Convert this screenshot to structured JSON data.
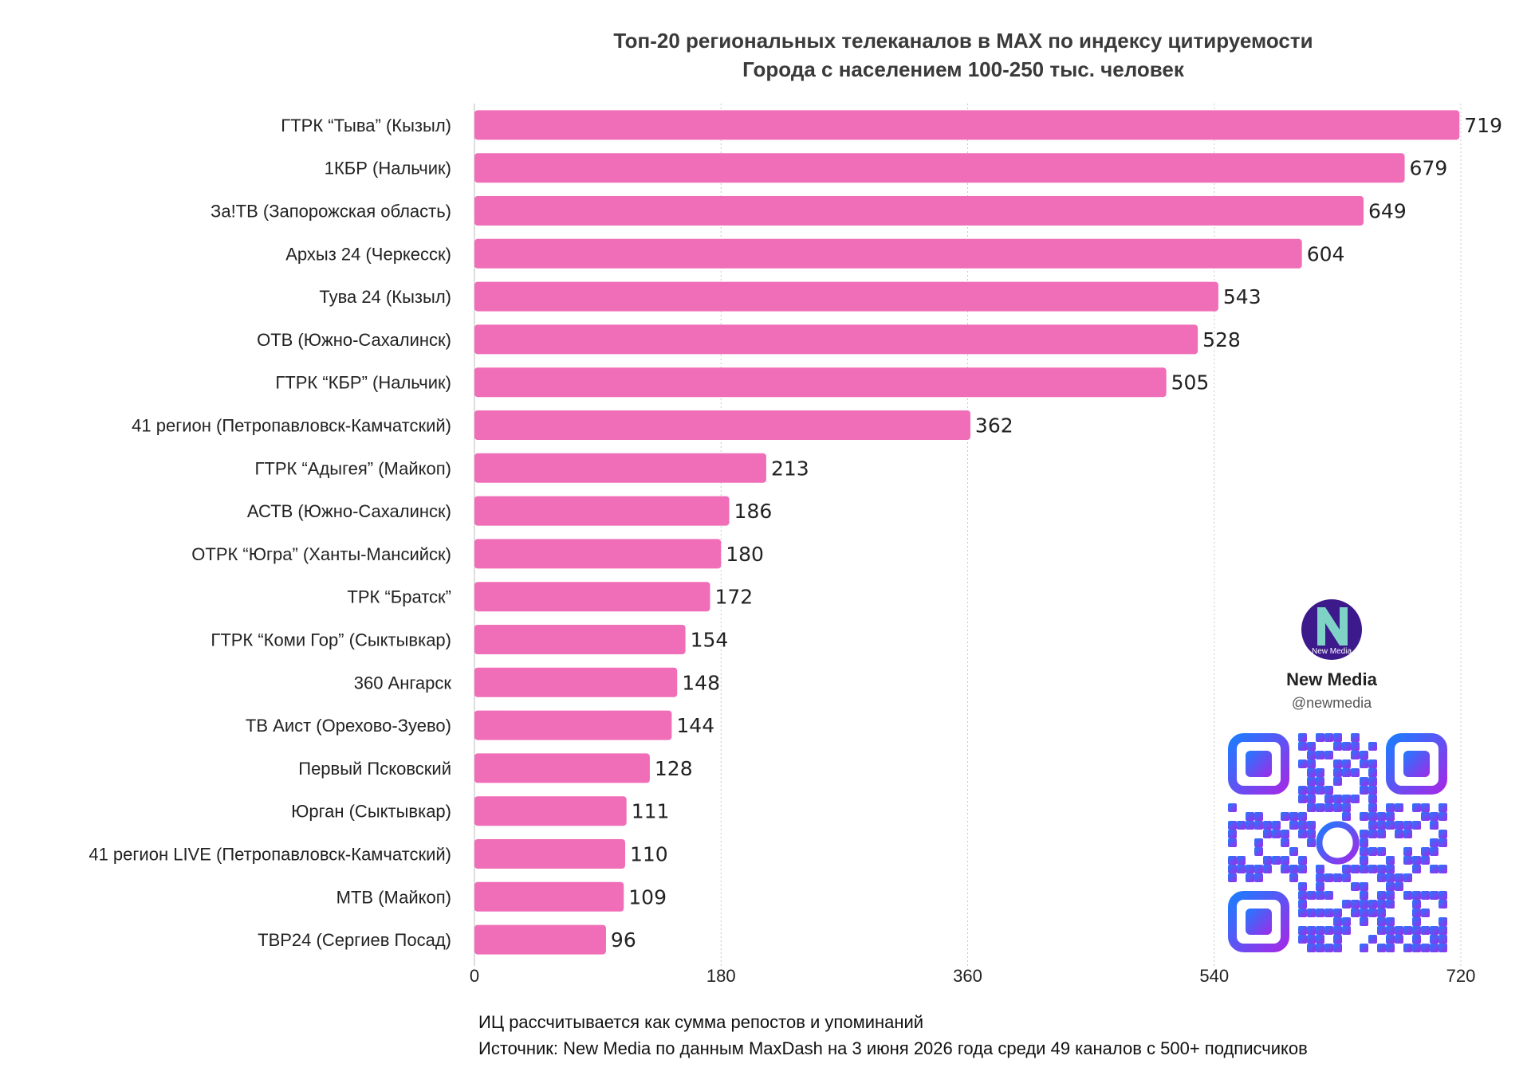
{
  "chart_data": {
    "type": "bar",
    "orientation": "horizontal",
    "title": "Топ-20 региональных телеканалов в MAX по индексу цитируемости",
    "subtitle": "Города с населением 100-250 тыс. человек",
    "categories": [
      "ГТРК “Тыва” (Кызыл)",
      "1КБР (Нальчик)",
      "За!ТВ (Запорожская область)",
      "Архыз 24 (Черкесск)",
      "Тува 24 (Кызыл)",
      "ОТВ (Южно-Сахалинск)",
      "ГТРК “КБР” (Нальчик)",
      "41 регион (Петропавловск-Камчатский)",
      "ГТРК “Адыгея” (Майкоп)",
      "АСТВ (Южно-Сахалинск)",
      "ОТРК “Югра” (Ханты-Мансийск)",
      "ТРК “Братск”",
      "ГТРК “Коми Гор” (Сыктывкар)",
      "360 Ангарск",
      "ТВ Аист (Орехово-Зуево)",
      "Первый Псковский",
      "Юрган (Сыктывкар)",
      "41 регион LIVE (Петропавловск-Камчатский)",
      "МТВ (Майкоп)",
      "ТВР24 (Сергиев Посад)"
    ],
    "values": [
      719,
      679,
      649,
      604,
      543,
      528,
      505,
      362,
      213,
      186,
      180,
      172,
      154,
      148,
      144,
      128,
      111,
      110,
      109,
      96
    ],
    "xlim": [
      0,
      720
    ],
    "xticks": [
      0,
      180,
      360,
      540,
      720
    ],
    "grid": "vertical-dotted",
    "bar_color": "#f06db7"
  },
  "notes": {
    "line1": "ИЦ рассчитывается как сумма репостов и упоминаний",
    "line2": "Источник: New Media по данным MaxDash на 3 июня 2026 года среди 49 каналов с 500+ подписчиков"
  },
  "brand": {
    "logo_text": "New Media",
    "name": "New Media",
    "handle": "@newmedia",
    "logo_color": "#3d1a8c",
    "qr_gradient": [
      "#1e7bff",
      "#a02be8"
    ]
  }
}
